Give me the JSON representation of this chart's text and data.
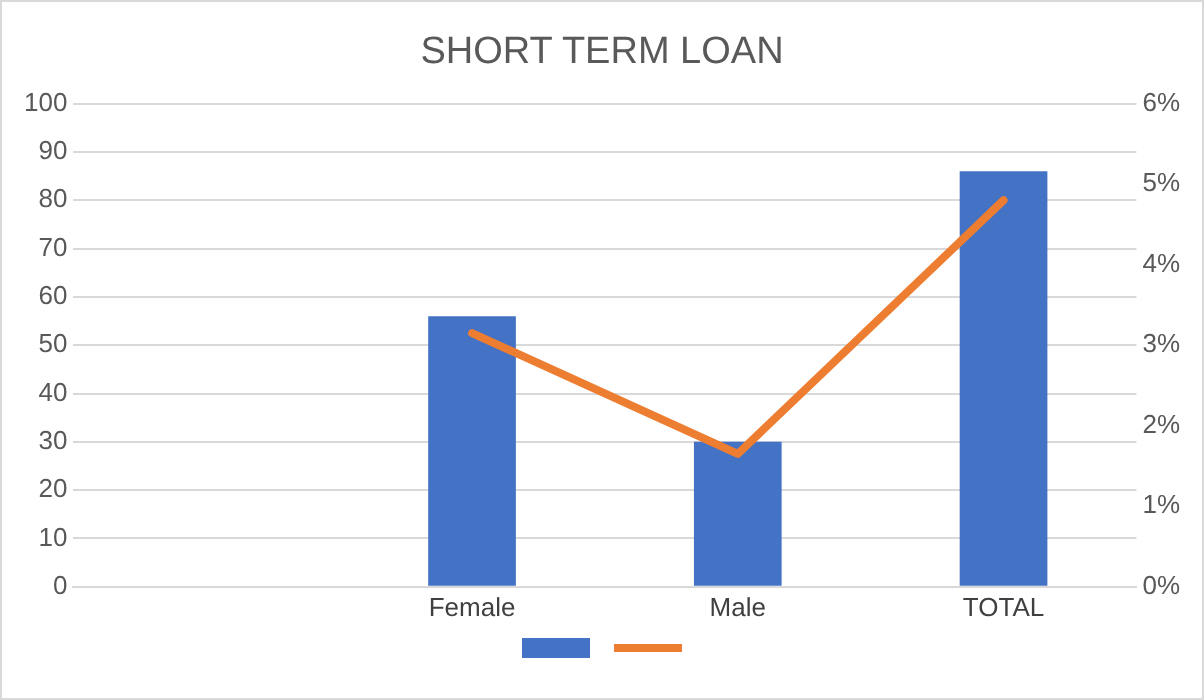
{
  "chart_data": {
    "type": "bar",
    "title": "SHORT TERM LOAN",
    "categories": [
      null,
      "Female",
      "Male",
      "TOTAL"
    ],
    "series": [
      {
        "color": "#4472c4",
        "values": [
          null,
          56,
          30,
          86
        ]
      },
      {
        "type": "line",
        "color": "#ed7d31",
        "axis": "y2",
        "values": [
          null,
          3.15,
          1.65,
          4.8
        ],
        "marker": "none"
      }
    ],
    "ylim": [
      0,
      100
    ],
    "yticks": [
      0,
      10,
      20,
      30,
      40,
      50,
      60,
      70,
      80,
      90,
      100
    ],
    "y2lim": [
      0,
      6
    ],
    "y2ticks": [
      {
        "value": 0,
        "label": "0%"
      },
      {
        "value": 1,
        "label": "1%"
      },
      {
        "value": 2,
        "label": "2%"
      },
      {
        "value": 3,
        "label": "3%"
      },
      {
        "value": 4,
        "label": "4%"
      },
      {
        "value": 5,
        "label": "5%"
      },
      {
        "value": 6,
        "label": "6%"
      }
    ],
    "grid": "y"
  }
}
